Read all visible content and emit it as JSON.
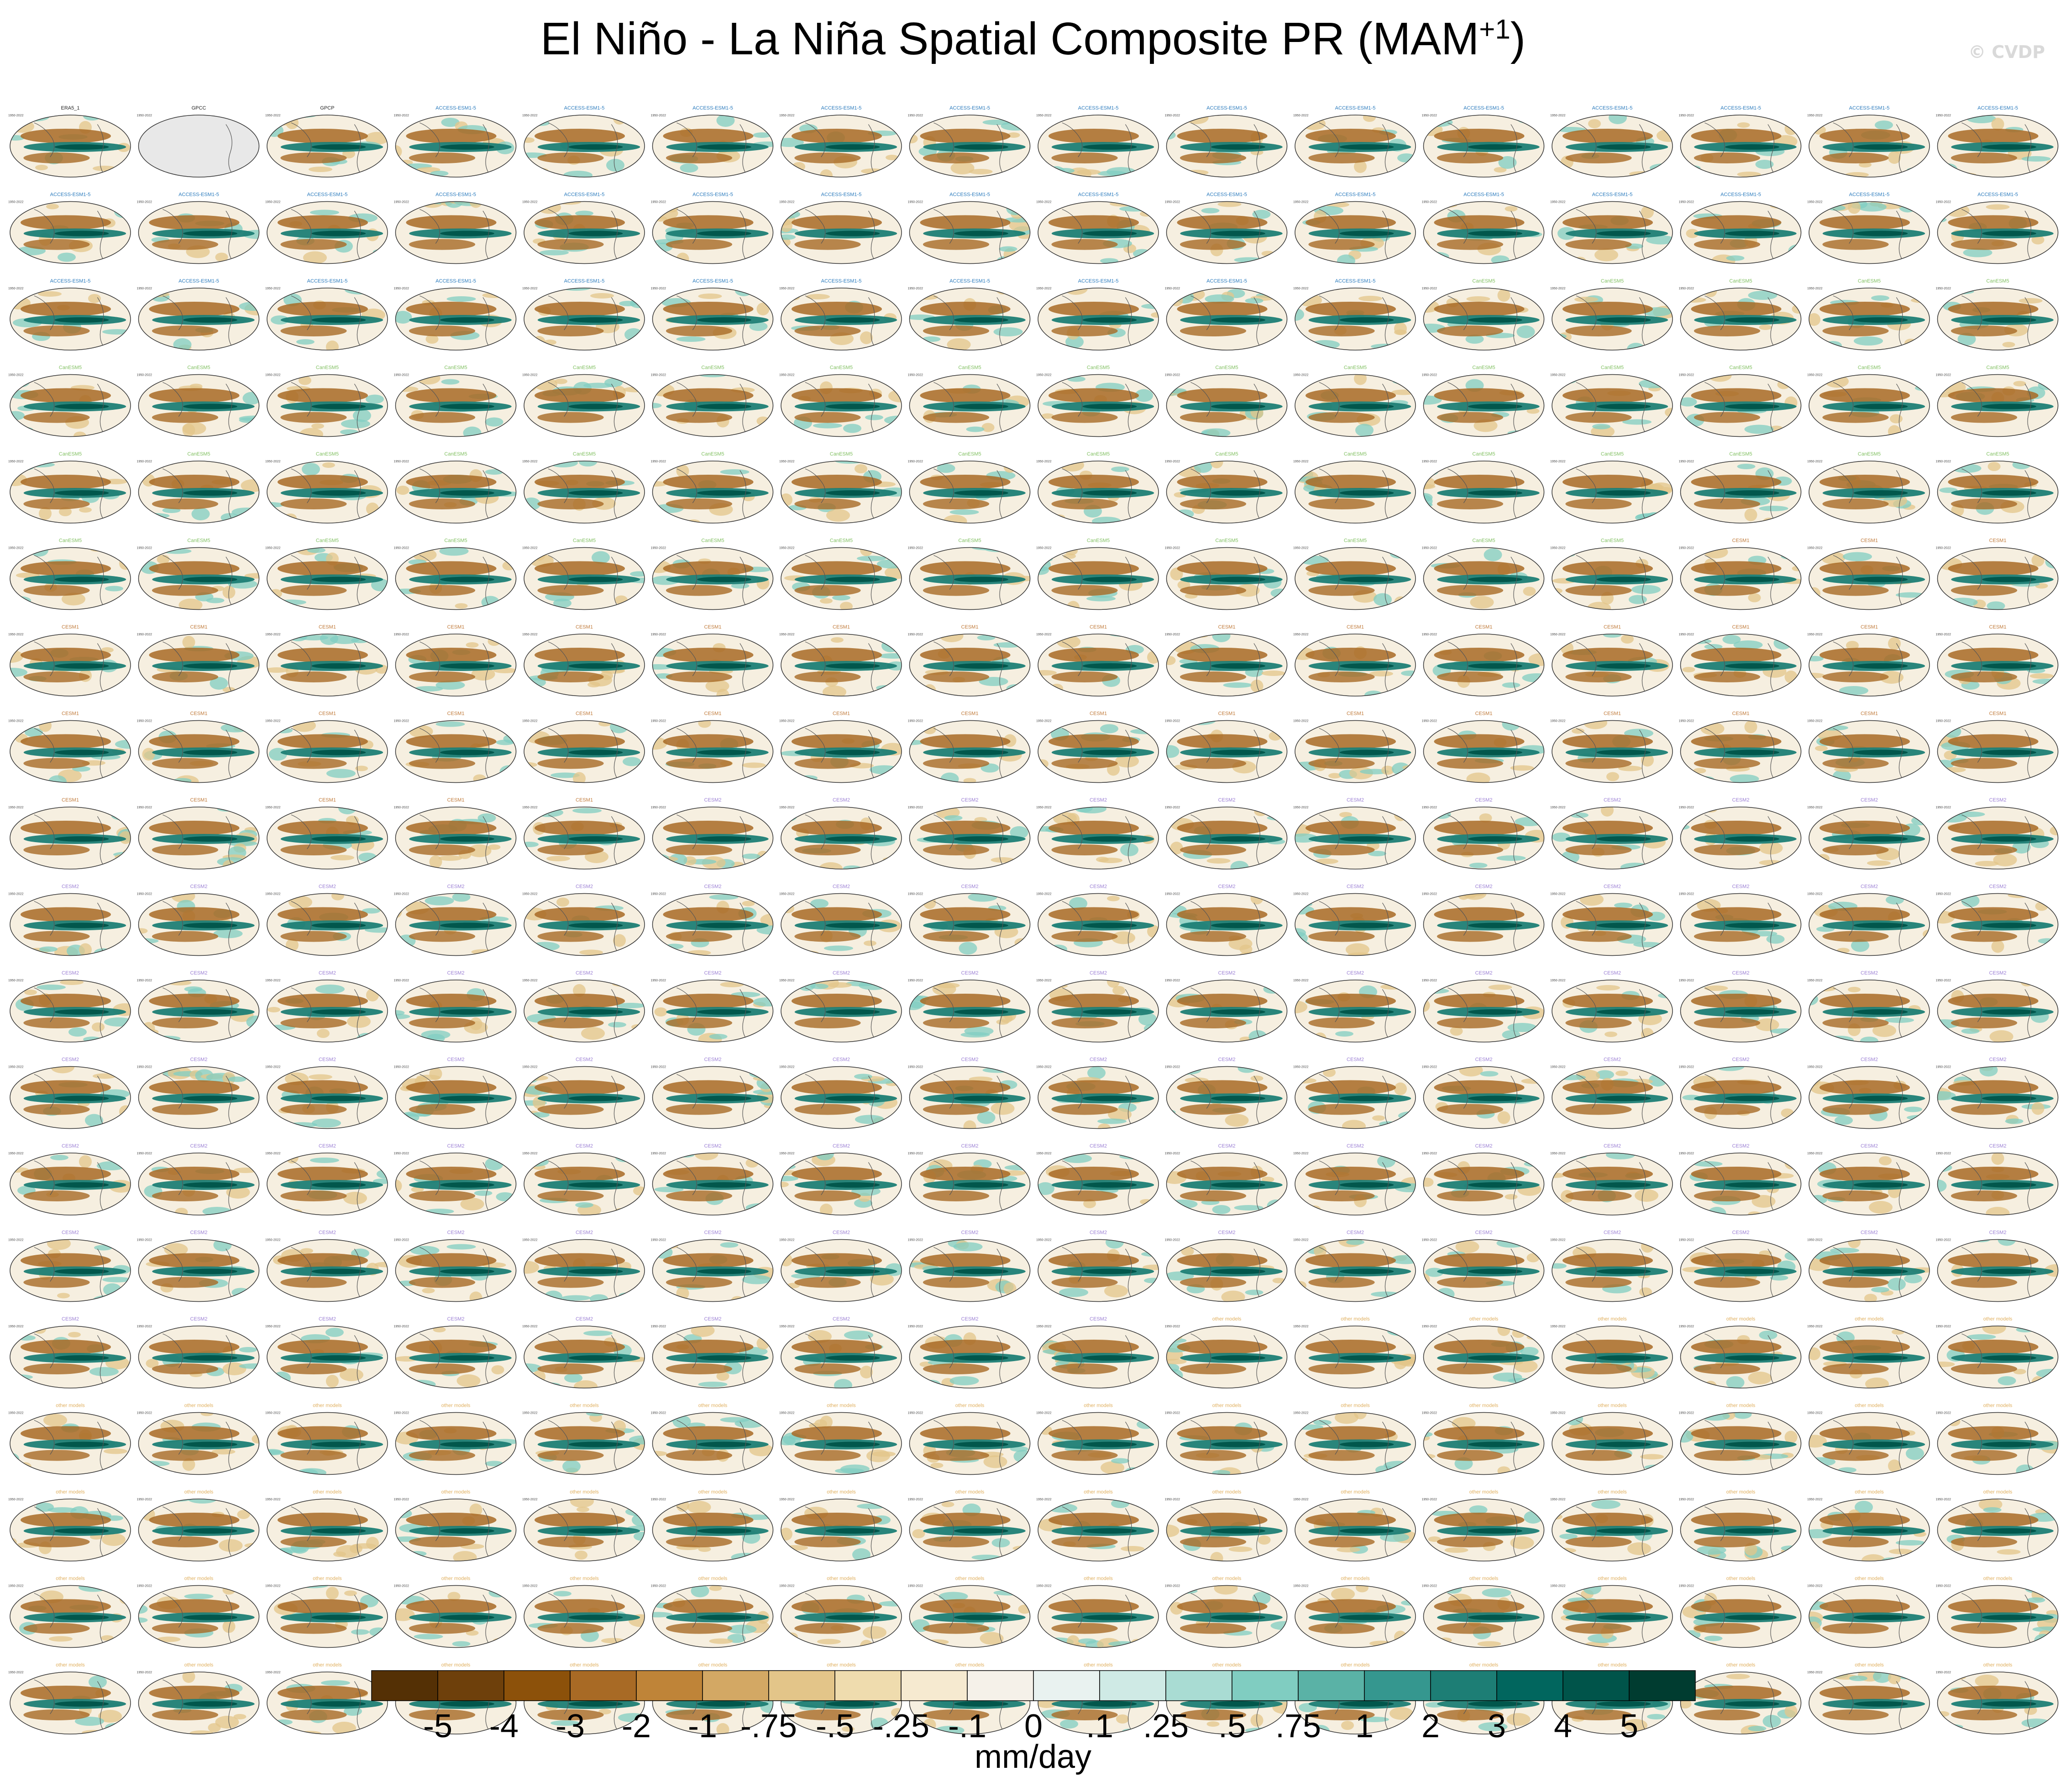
{
  "figure": {
    "title_main": "El Niño - La Niña Spatial Composite PR (MAM",
    "title_sup": "+1",
    "title_end": ")",
    "copyright": "© CVDP",
    "units": "mm/day"
  },
  "chart_data": {
    "type": "heatmap",
    "variable": "PR",
    "season": "MAM+1",
    "composite": "El Niño - La Niña",
    "grid_rows": 19,
    "grid_cols": 16,
    "panel_period_label": "1950-2022",
    "panels_observational": [
      "ERA5_1",
      "GPCC",
      "GPCP"
    ],
    "panel_model_groups": [
      {
        "name": "ACCESS-ESM1-5",
        "color": "#2b7bbd",
        "count": 40
      },
      {
        "name": "CanESM5",
        "color": "#7fbf5f",
        "count": 50
      },
      {
        "name": "CESM1",
        "color": "#c07a3a",
        "count": 40
      },
      {
        "name": "CESM2",
        "color": "#9b7fd4",
        "count": 100
      },
      {
        "name": "other models",
        "color": "#e0b060",
        "count": 71
      }
    ],
    "colorbar": {
      "colors": [
        "#543005",
        "#6e400b",
        "#8c510a",
        "#a86a25",
        "#bf8438",
        "#d3a864",
        "#e3c589",
        "#efdcae",
        "#f6ead0",
        "#f5f1e9",
        "#e9f2f0",
        "#cfeae5",
        "#a9dcd3",
        "#80cdc1",
        "#5ab2a6",
        "#35978f",
        "#1d7e75",
        "#01665e",
        "#00544a",
        "#003c30"
      ],
      "tick_labels": [
        "-5",
        "-4",
        "-3",
        "-2",
        "-1",
        "-.75",
        "-.5",
        "-.25",
        "-.1",
        "0",
        ".1",
        ".25",
        ".5",
        ".75",
        "1",
        "2",
        "3",
        "4",
        "5"
      ]
    }
  }
}
